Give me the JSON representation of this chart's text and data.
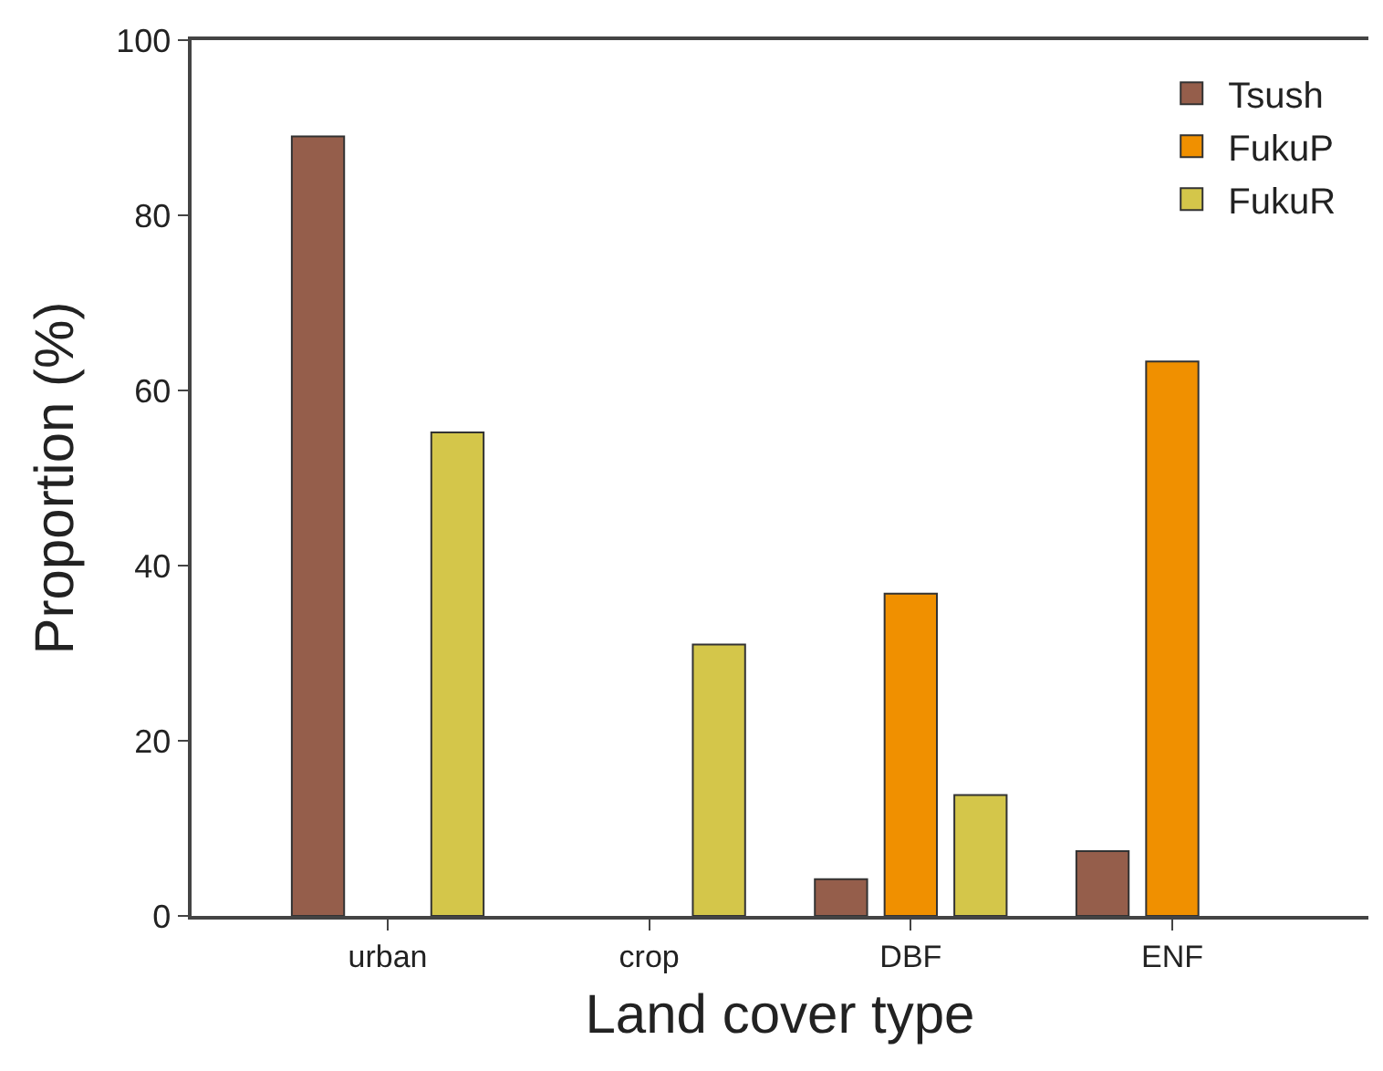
{
  "chart_data": {
    "type": "bar",
    "xlabel": "Land cover type",
    "ylabel": "Proportion (%)",
    "categories": [
      "urban",
      "crop",
      "DBF",
      "ENF"
    ],
    "series": [
      {
        "name": "Tsush",
        "color": "#955e4b",
        "values": [
          89.0,
          null,
          4.2,
          7.4
        ]
      },
      {
        "name": "FukuP",
        "color": "#f09000",
        "values": [
          null,
          null,
          36.8,
          63.3
        ]
      },
      {
        "name": "FukuR",
        "color": "#d4c64a",
        "values": [
          55.2,
          31.0,
          13.8,
          null
        ]
      }
    ],
    "ylim": [
      0,
      100
    ],
    "yticks": [
      0,
      20,
      40,
      60,
      80,
      100
    ],
    "grid": false,
    "legend": "top right"
  }
}
